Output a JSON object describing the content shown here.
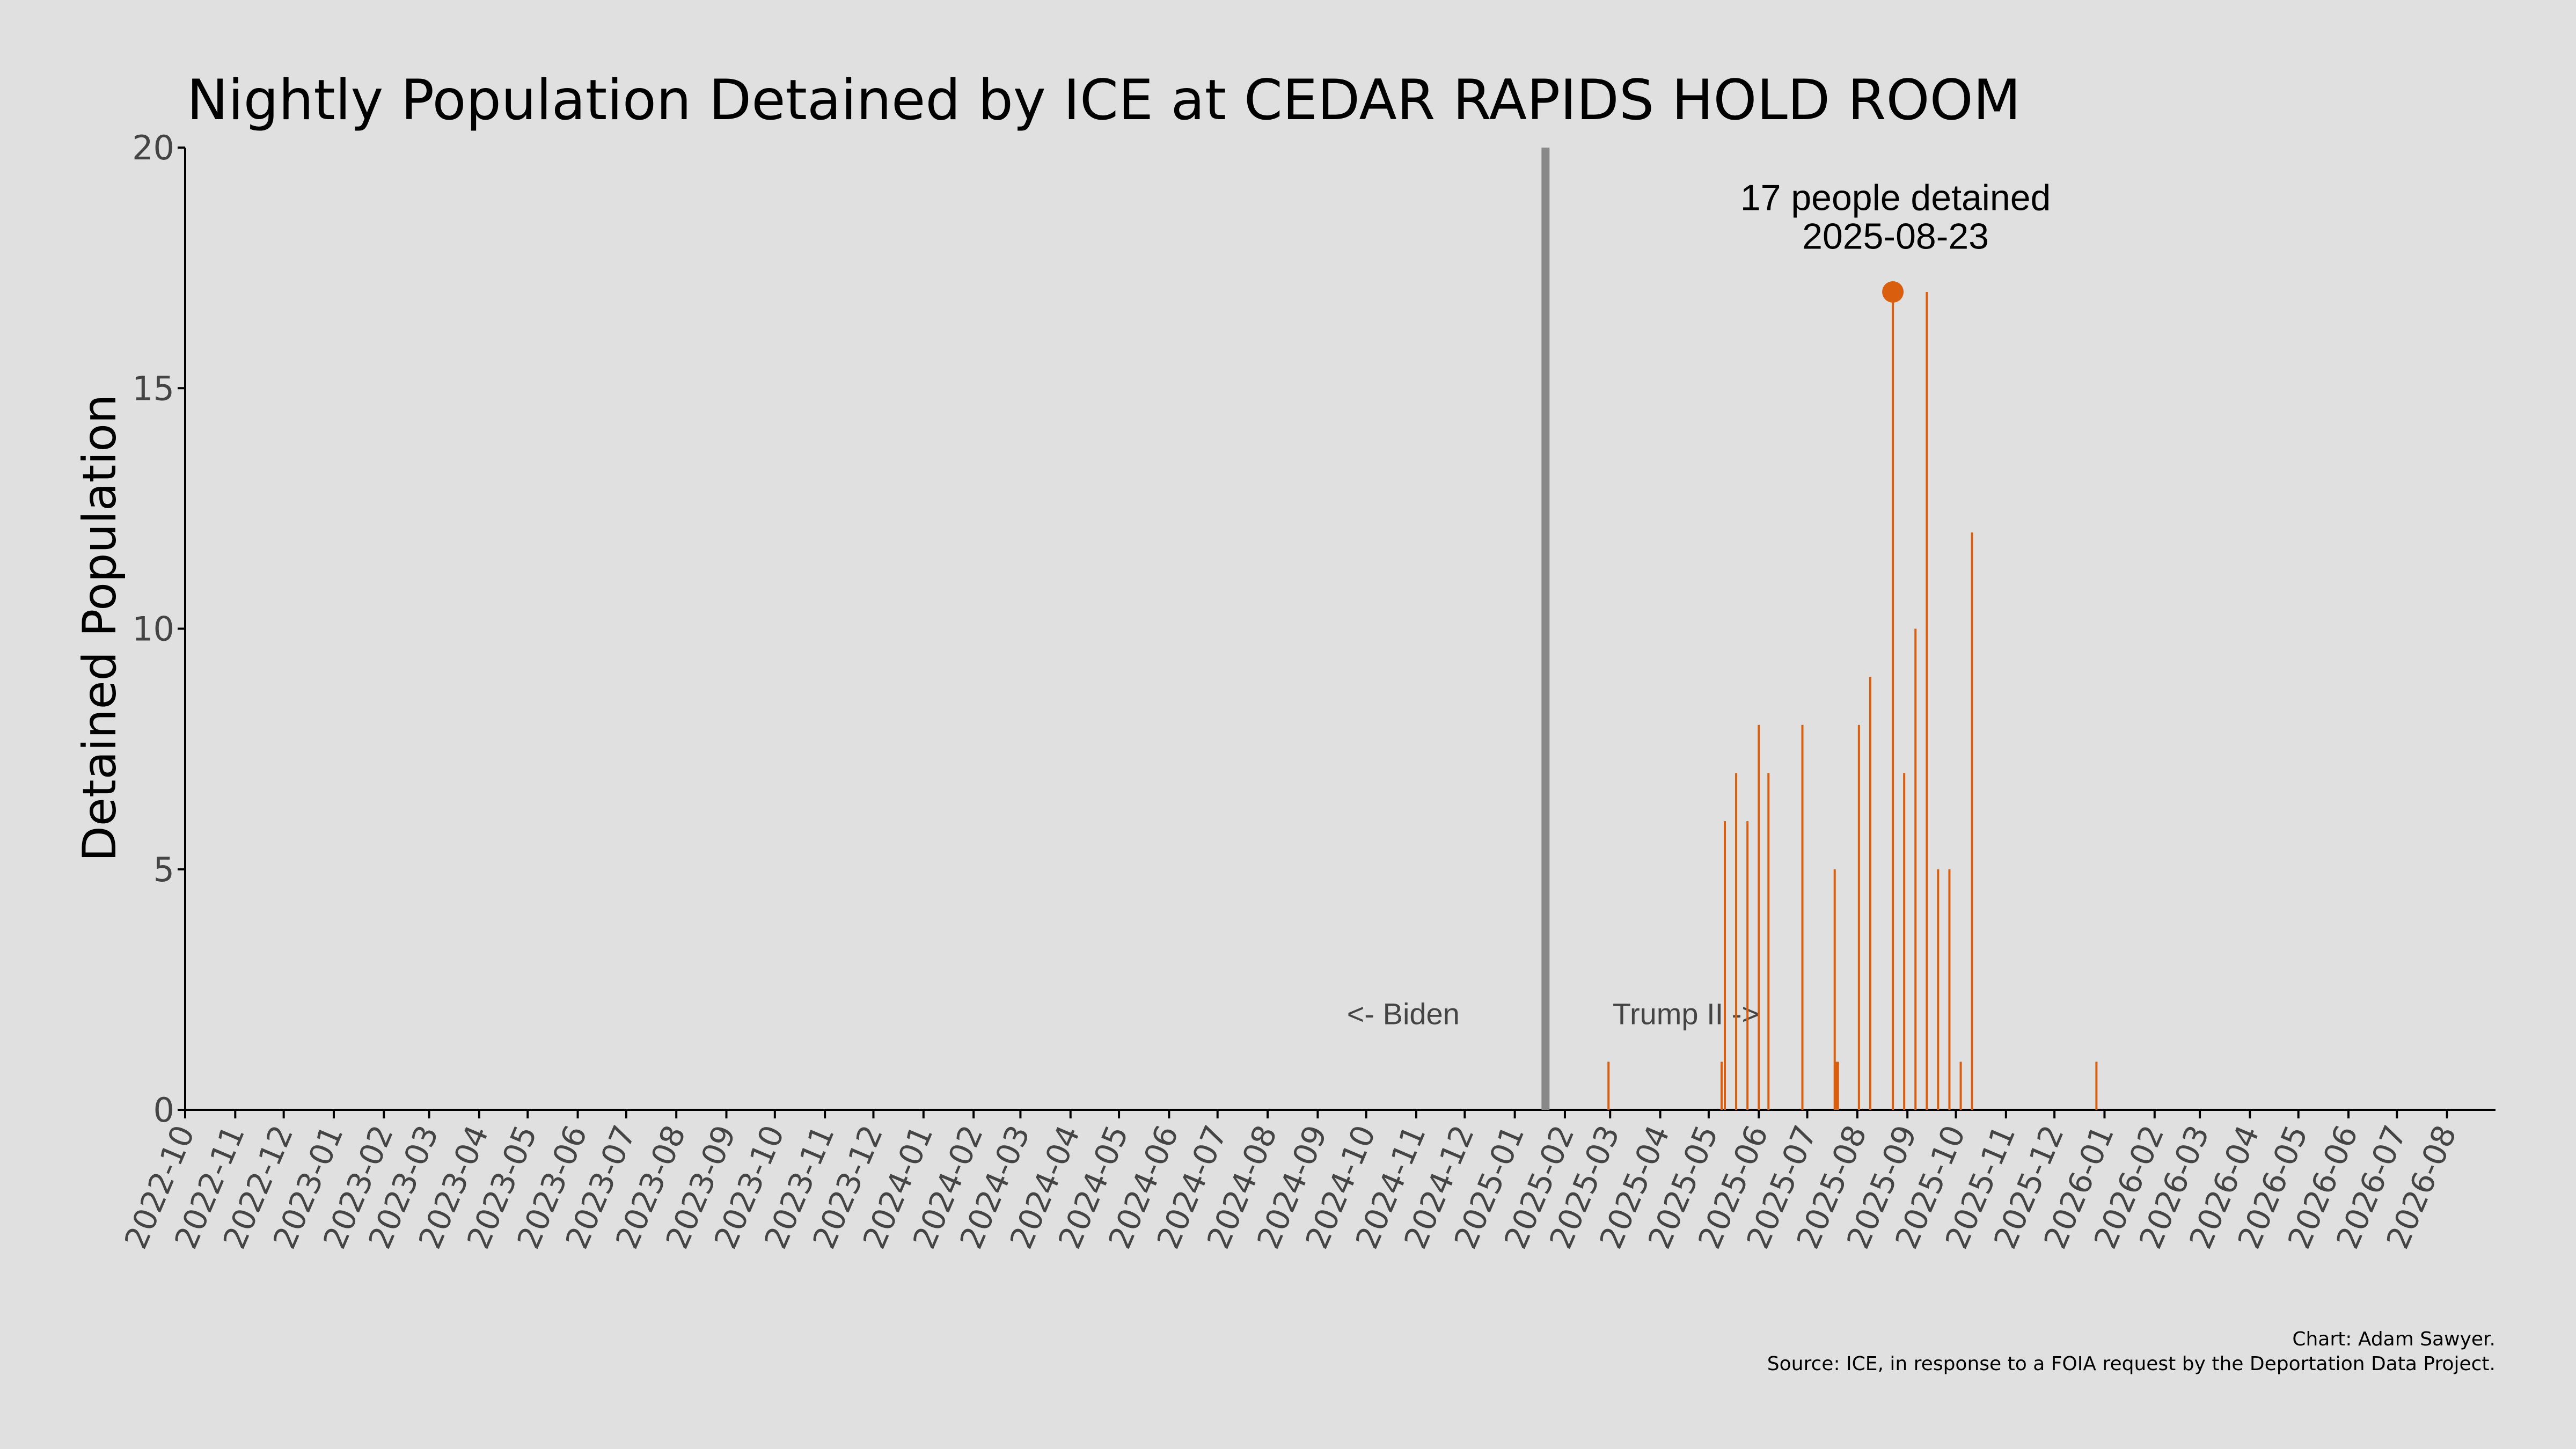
{
  "chart_data": {
    "type": "bar",
    "title": "Nightly Population Detained by ICE at CEDAR RAPIDS HOLD ROOM",
    "ylabel": "Detained Population",
    "xlabel": "",
    "ylim": [
      0,
      20
    ],
    "yticks": [
      0,
      5,
      10,
      15,
      20
    ],
    "xlim": [
      "2022-10-01",
      "2026-08-31"
    ],
    "xtick_labels": [
      "2022-10",
      "2022-11",
      "2022-12",
      "2023-01",
      "2023-02",
      "2023-03",
      "2023-04",
      "2023-05",
      "2023-06",
      "2023-07",
      "2023-08",
      "2023-09",
      "2023-10",
      "2023-11",
      "2023-12",
      "2024-01",
      "2024-02",
      "2024-03",
      "2024-04",
      "2024-05",
      "2024-06",
      "2024-07",
      "2024-08",
      "2024-09",
      "2024-10",
      "2024-11",
      "2024-12",
      "2025-01",
      "2025-02",
      "2025-03",
      "2025-04",
      "2025-05",
      "2025-06",
      "2025-07",
      "2025-08",
      "2025-09",
      "2025-10",
      "2025-11",
      "2025-12",
      "2026-01",
      "2026-02",
      "2026-03",
      "2026-04",
      "2026-05",
      "2026-06",
      "2026-07",
      "2026-08"
    ],
    "grid": false,
    "bar_color": "#d95f0e",
    "points": [
      {
        "date": "2025-02-28",
        "value": 1
      },
      {
        "date": "2025-05-09",
        "value": 1
      },
      {
        "date": "2025-05-11",
        "value": 6
      },
      {
        "date": "2025-05-18",
        "value": 7
      },
      {
        "date": "2025-05-25",
        "value": 6
      },
      {
        "date": "2025-06-01",
        "value": 8
      },
      {
        "date": "2025-06-07",
        "value": 7
      },
      {
        "date": "2025-06-28",
        "value": 8
      },
      {
        "date": "2025-07-18",
        "value": 5
      },
      {
        "date": "2025-07-19",
        "value": 1
      },
      {
        "date": "2025-07-20",
        "value": 1
      },
      {
        "date": "2025-08-02",
        "value": 8
      },
      {
        "date": "2025-08-09",
        "value": 9
      },
      {
        "date": "2025-08-23",
        "value": 17
      },
      {
        "date": "2025-08-30",
        "value": 7
      },
      {
        "date": "2025-09-06",
        "value": 10
      },
      {
        "date": "2025-09-13",
        "value": 17
      },
      {
        "date": "2025-09-20",
        "value": 5
      },
      {
        "date": "2025-09-27",
        "value": 5
      },
      {
        "date": "2025-10-04",
        "value": 1
      },
      {
        "date": "2025-10-11",
        "value": 12
      },
      {
        "date": "2025-12-27",
        "value": 1
      }
    ],
    "highlight": {
      "date": "2025-08-23",
      "value": 17,
      "label_line1": "17 people detained",
      "label_line2": "2025-08-23",
      "color": "#d95f0e"
    },
    "transition": {
      "date": "2025-01-20",
      "color": "#888888",
      "left_label": "<- Biden",
      "right_label": "Trump II ->"
    }
  },
  "footer": {
    "credit": "Chart: Adam Sawyer.",
    "source": "Source: ICE, in response to a FOIA request by the Deportation Data Project."
  },
  "colors": {
    "background": "#e0e0e0",
    "axis": "#000000"
  }
}
